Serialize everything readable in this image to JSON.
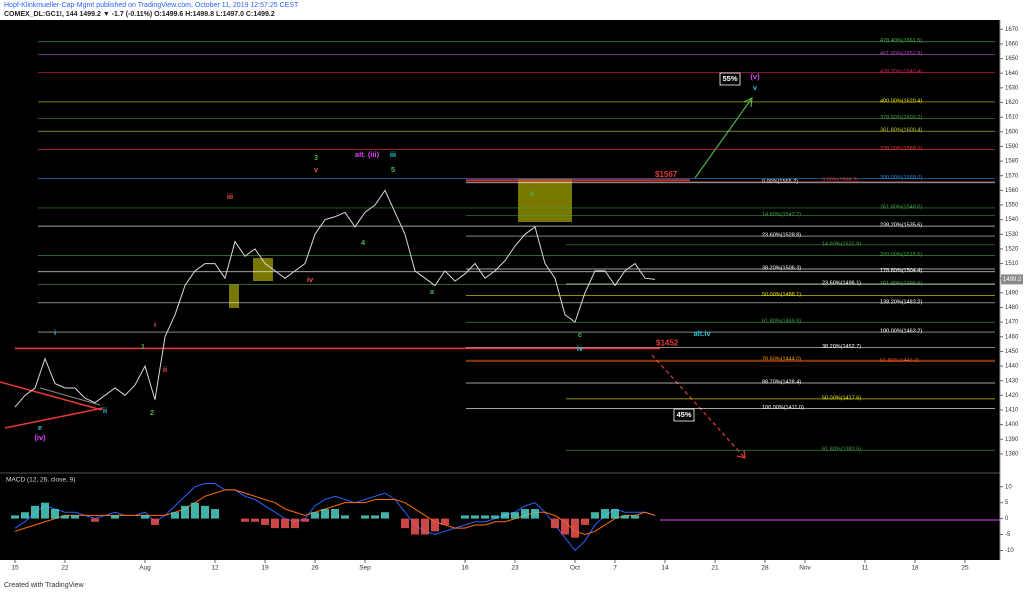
{
  "header": {
    "line1": "Hopf-Klinkmueller-Cap-Mgmt published on TradingView.com, October 11, 2019 12:57:25 CEST",
    "line2": "COMEX_DL:GC1!, 144  1499.2  ▼ -1.7 (-0.11%)  O:1499.6  H:1499.8  L:1497.0  C:1499.2"
  },
  "footer": "Created with TradingView",
  "chart_data": [
    {
      "type": "line",
      "categories": [
        "15",
        null,
        null,
        null,
        null,
        "22",
        null,
        null,
        null,
        null,
        null,
        null,
        null,
        "Aug",
        null,
        null,
        null,
        null,
        null,
        null,
        "12",
        null,
        null,
        null,
        null,
        "19",
        null,
        null,
        null,
        null,
        "26",
        null,
        null,
        null,
        null,
        "Sep",
        null,
        null,
        null,
        null,
        null,
        null,
        null,
        null,
        null,
        "16",
        null,
        null,
        null,
        null,
        "23",
        null,
        null,
        null,
        null,
        null,
        "Oct",
        null,
        null,
        null,
        "7",
        null,
        null,
        null,
        null,
        "14",
        null,
        null,
        null,
        null,
        "21",
        null,
        null,
        null,
        null,
        "28",
        null,
        null,
        null,
        "Nov",
        null,
        null,
        null,
        null,
        null,
        "11",
        null,
        null,
        null,
        null,
        "18",
        null,
        null,
        null,
        null,
        "25",
        null,
        null,
        null
      ],
      "values": [
        1412,
        1420,
        1425,
        1445,
        1428,
        1425,
        1425,
        1418,
        1415,
        1420,
        1425,
        1420,
        1427,
        1440,
        1417,
        1460,
        1475,
        1495,
        1505,
        1510,
        1510,
        1500,
        1525,
        1515,
        1520,
        1510,
        1505,
        1500,
        1505,
        1510,
        1530,
        1540,
        1542,
        1545,
        1535,
        1545,
        1550,
        1560,
        1545,
        1530,
        1505,
        1500,
        1495,
        1505,
        1498,
        1503,
        1510,
        1500,
        1505,
        1512,
        1522,
        1530,
        1535,
        1510,
        1500,
        1475,
        1470,
        1490,
        1505,
        1505,
        1495,
        1505,
        1510,
        1500,
        1499.2,
        null,
        null,
        null,
        null,
        null,
        null,
        null,
        null,
        null,
        null,
        null,
        null,
        null,
        null,
        null,
        null,
        null,
        null,
        null,
        null,
        null,
        null,
        null,
        null,
        null,
        null,
        null,
        null,
        null,
        null,
        null,
        null,
        null,
        null
      ],
      "color": "#d9d9d9",
      "ylim": [
        1369,
        1675
      ],
      "yticks": [
        1380,
        1390,
        1400,
        1410,
        1420,
        1430,
        1440,
        1450,
        1460,
        1470,
        1480,
        1490,
        1500,
        1510,
        1520,
        1530,
        1540,
        1550,
        1560,
        1570,
        1580,
        1590,
        1600,
        1610,
        1620,
        1630,
        1640,
        1650,
        1660,
        1670
      ],
      "levels": [
        {
          "label": "478.40%(1661.5)",
          "value": 1661.5,
          "color": "#4caf50"
        },
        {
          "label": "461.80%(1652.8)",
          "value": 1652.8,
          "color": "#ab47bc"
        },
        {
          "label": "438.20%(1640.4)",
          "value": 1640.4,
          "color": "#d81b60"
        },
        {
          "label": "400.00%(1620.4)",
          "value": 1620.4,
          "color": "#e6e600"
        },
        {
          "label": "378.60%(1609.2)",
          "value": 1609.2,
          "color": "#43a047"
        },
        {
          "label": "361.80%(1600.4)",
          "value": 1600.4,
          "color": "#c0ca33"
        },
        {
          "label": "338.20%(1588.0)",
          "value": 1588.0,
          "color": "#e53935"
        },
        {
          "label": "300.00%(1568.0)",
          "value": 1568.0,
          "color": "#1e88e5"
        },
        {
          "label": "261.80%(1548.0)",
          "value": 1548.0,
          "color": "#43a047"
        },
        {
          "label": "238.20%(1535.6)",
          "value": 1535.6,
          "color": "#ffffff"
        },
        {
          "label": "200.00%(1515.6)",
          "value": 1515.6,
          "color": "#43a047"
        },
        {
          "label": "178.60%(1504.4)",
          "value": 1504.4,
          "color": "#ffffff"
        },
        {
          "label": "161.80%(1495.6)",
          "value": 1495.6,
          "color": "#43a047"
        },
        {
          "label": "138.20%(1483.2)",
          "value": 1483.2,
          "color": "#ffffff"
        },
        {
          "label": "100.00%(1463.2)",
          "value": 1463.2,
          "color": "#ffffff"
        },
        {
          "label": "61.80%(1443.2)",
          "value": 1443.2,
          "color": "#e53935"
        },
        {
          "label": "0.00%(1565.2)",
          "value": 1565.2,
          "color": "#ffffff"
        },
        {
          "label": "0.00%(1566.2)",
          "value": 1566.2,
          "color": "#e53935"
        },
        {
          "label": "14.60%(1542.7)",
          "value": 1542.7,
          "color": "#43a047"
        },
        {
          "label": "23.60%(1528.8)",
          "value": 1528.8,
          "color": "#ffffff"
        },
        {
          "label": "38.20%(1506.3)",
          "value": 1506.3,
          "color": "#ffffff"
        },
        {
          "label": "50.00%(1488.1)",
          "value": 1488.1,
          "color": "#e6e600"
        },
        {
          "label": "61.80%(1469.9)",
          "value": 1469.9,
          "color": "#43a047"
        },
        {
          "label": "38.20%(1452.7)",
          "value": 1452.7,
          "color": "#ffffff"
        },
        {
          "label": "78.60%(1444.0)",
          "value": 1444.0,
          "color": "#ff9800"
        },
        {
          "label": "88.70%(1428.4)",
          "value": 1428.4,
          "color": "#ffffff"
        },
        {
          "label": "100.00%(1411.0)",
          "value": 1411.0,
          "color": "#ffffff"
        },
        {
          "label": "14.60%(1522.8)",
          "value": 1522.8,
          "color": "#43a047"
        },
        {
          "label": "23.60%(1496.1)",
          "value": 1496.1,
          "color": "#ffffff"
        },
        {
          "label": "50.00%(1417.6)",
          "value": 1417.6,
          "color": "#e6e600"
        },
        {
          "label": "61.80%(1382.5)",
          "value": 1382.5,
          "color": "#43a047"
        }
      ],
      "price_lines": [
        {
          "label": "$1567",
          "value": 1567,
          "color": "#e53935"
        },
        {
          "label": "$1452",
          "value": 1452,
          "color": "#e53935"
        }
      ],
      "wave_labels": [
        {
          "text": "e",
          "color": "#26c6da"
        },
        {
          "text": "(iv)",
          "color": "#e040fb"
        },
        {
          "text": "i",
          "color": "#26c6da"
        },
        {
          "text": "ii",
          "color": "#26c6da"
        },
        {
          "text": "1",
          "color": "#4caf50"
        },
        {
          "text": "i",
          "color": "#ef5350"
        },
        {
          "text": "ii",
          "color": "#ef5350"
        },
        {
          "text": "2",
          "color": "#4caf50"
        },
        {
          "text": "iii",
          "color": "#ef5350"
        },
        {
          "text": "iv",
          "color": "#ef5350"
        },
        {
          "text": "3",
          "color": "#4caf50"
        },
        {
          "text": "v",
          "color": "#ef5350"
        },
        {
          "text": "alt. (iii)",
          "color": "#e040fb"
        },
        {
          "text": "iii",
          "color": "#26c6da"
        },
        {
          "text": "5",
          "color": "#4caf50"
        },
        {
          "text": "4",
          "color": "#4caf50"
        },
        {
          "text": "a",
          "color": "#4caf50"
        },
        {
          "text": "b",
          "color": "#4caf50"
        },
        {
          "text": "c",
          "color": "#4caf50"
        },
        {
          "text": "iv",
          "color": "#26c6da"
        },
        {
          "text": "alt.iv",
          "color": "#26c6da"
        },
        {
          "text": "(v)",
          "color": "#e040fb"
        },
        {
          "text": "v",
          "color": "#26c6da"
        }
      ],
      "scenario_labels": [
        "55%",
        "45%"
      ]
    },
    {
      "type": "macd",
      "title": "MACD (12, 26, close, 9)",
      "ylim": [
        -13,
        14
      ],
      "yticks": [
        -10,
        -5,
        0,
        5,
        10
      ],
      "series": [
        {
          "color": "#2962ff",
          "values": [
            -3,
            -1,
            2,
            4,
            3,
            2,
            2,
            1,
            0,
            1,
            2,
            1,
            1,
            2,
            -1,
            1,
            4,
            7,
            10,
            11,
            11,
            9,
            9,
            7,
            6,
            4,
            2,
            0,
            -1,
            0,
            4,
            6,
            7,
            6,
            5,
            6,
            7,
            8,
            6,
            2,
            -2,
            -4,
            -5,
            -4,
            -3,
            -2,
            -1,
            -1,
            0,
            1,
            2,
            4,
            5,
            2,
            -2,
            -6,
            -10,
            -7,
            -2,
            1,
            3,
            2,
            2,
            2,
            1,
            null,
            null,
            null,
            null,
            null,
            null,
            null,
            null,
            null,
            null,
            null,
            null,
            null,
            null,
            null,
            null,
            null,
            null,
            null,
            null,
            null,
            null,
            null,
            null,
            null,
            null,
            null,
            null,
            null,
            null,
            null,
            null,
            null,
            null
          ]
        },
        {
          "color": "#ff6d00",
          "values": [
            -4,
            -3,
            -2,
            -1,
            0,
            1,
            1,
            1,
            1,
            1,
            1,
            1,
            1,
            1,
            1,
            1,
            2,
            3,
            5,
            7,
            8,
            9,
            9,
            8,
            7,
            6,
            5,
            3,
            2,
            1,
            2,
            3,
            4,
            5,
            5,
            5,
            6,
            6,
            6,
            5,
            3,
            1,
            -1,
            -2,
            -3,
            -3,
            -2,
            -2,
            -1,
            -1,
            0,
            1,
            2,
            2,
            1,
            -1,
            -4,
            -5,
            -4,
            -2,
            0,
            1,
            1,
            2,
            1,
            null,
            null,
            null,
            null,
            null,
            null,
            null,
            null,
            null,
            null,
            null,
            null,
            null,
            null,
            null,
            null,
            null,
            null,
            null,
            null,
            null,
            null,
            null,
            null,
            null,
            null,
            null,
            null,
            null,
            null,
            null,
            null,
            null,
            null
          ]
        },
        {
          "style": "histogram",
          "color": "#4dd0c4",
          "negative_color": "#ef5350",
          "values": [
            1,
            2,
            4,
            5,
            3,
            1,
            1,
            0,
            -1,
            0,
            1,
            0,
            0,
            1,
            -2,
            0,
            2,
            4,
            5,
            4,
            3,
            0,
            0,
            -1,
            -1,
            -2,
            -3,
            -3,
            -3,
            -1,
            2,
            3,
            3,
            1,
            0,
            1,
            1,
            2,
            0,
            -3,
            -5,
            -5,
            -4,
            -2,
            0,
            1,
            1,
            1,
            1,
            2,
            2,
            3,
            3,
            0,
            -3,
            -5,
            -6,
            -2,
            2,
            3,
            3,
            1,
            1,
            0,
            0,
            null,
            null,
            null,
            null,
            null,
            null,
            null,
            null,
            null,
            null,
            null,
            null,
            null,
            null,
            null,
            null,
            null,
            null,
            null,
            null,
            null,
            null,
            null,
            null,
            null,
            null,
            null,
            null,
            null,
            null,
            null,
            null,
            null,
            null
          ]
        }
      ]
    }
  ]
}
